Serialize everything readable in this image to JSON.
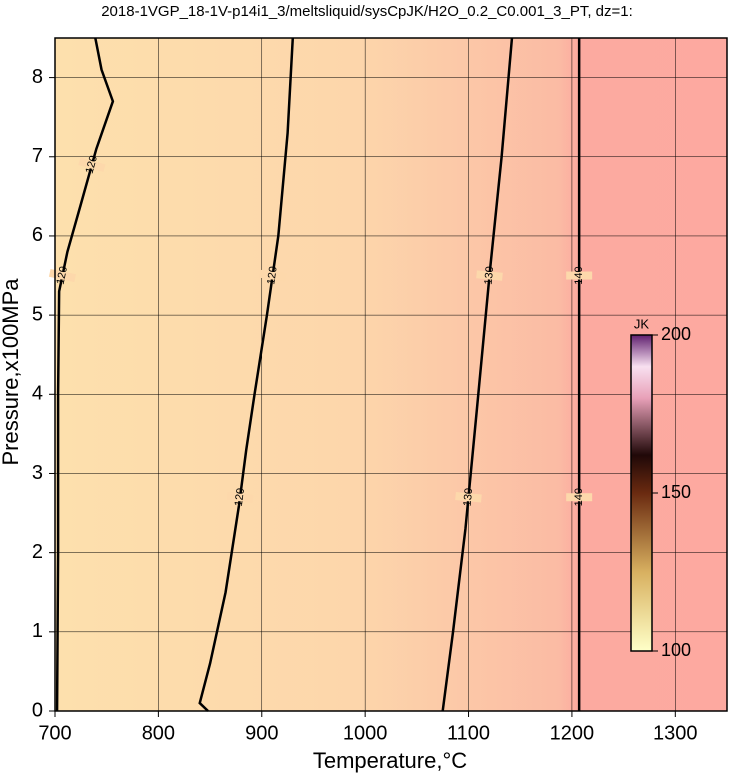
{
  "chart_data": {
    "type": "contour",
    "title": "2018-1VGP_18-1V-p14i1_3/meltsliquid/sysCpJK/H2O_0.2_C0.001_3_PT, dz=1:",
    "x_label": "Temperature,°C",
    "y_label": "Pressure,x100MPa",
    "xlim": [
      700,
      1350
    ],
    "ylim": [
      0,
      8.5
    ],
    "xticks": [
      700,
      800,
      900,
      1000,
      1100,
      1200,
      1300
    ],
    "yticks": [
      0,
      1,
      2,
      3,
      4,
      5,
      6,
      7,
      8
    ],
    "grid": true,
    "contours": [
      {
        "level": 120,
        "x": [
          702,
          703,
          703,
          704,
          712,
          725,
          740,
          756,
          745,
          739
        ],
        "y": [
          0,
          2,
          4,
          5.3,
          5.8,
          6.4,
          7.1,
          7.7,
          8.1,
          8.5
        ]
      },
      {
        "level": 120,
        "x": [
          848,
          840,
          850,
          865,
          878,
          885,
          893,
          905,
          916,
          925,
          930
        ],
        "y": [
          0,
          0.1,
          0.6,
          1.5,
          2.6,
          3.3,
          4,
          5,
          6,
          7.3,
          8.5
        ]
      },
      {
        "level": 130,
        "x": [
          1075,
          1085,
          1097,
          1108,
          1121,
          1132,
          1142
        ],
        "y": [
          0,
          1,
          2.3,
          3.8,
          5.6,
          7,
          8.5
        ]
      },
      {
        "level": 140,
        "x": [
          1207,
          1207
        ],
        "y": [
          0,
          8.5
        ]
      }
    ],
    "colorbar": {
      "label": "JK",
      "clim": [
        100,
        200
      ],
      "ticks": [
        100,
        150,
        200
      ]
    }
  }
}
